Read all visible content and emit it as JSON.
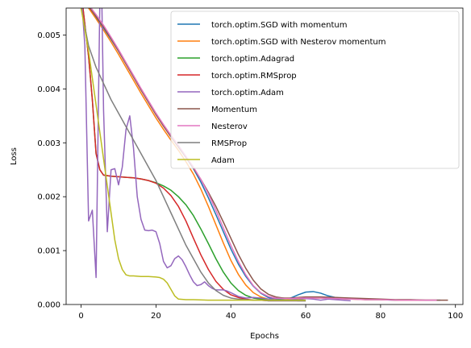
{
  "chart_data": {
    "type": "line",
    "title": "",
    "xlabel": "Epochs",
    "ylabel": "Loss",
    "xlim": [
      -4,
      102
    ],
    "ylim": [
      0,
      0.0055
    ],
    "grid": false,
    "legend_position": "top-right",
    "x_ticks": [
      0,
      20,
      40,
      60,
      80,
      100
    ],
    "x_tick_labels": [
      "0",
      "20",
      "40",
      "60",
      "80",
      "100"
    ],
    "y_ticks": [
      0,
      0.001,
      0.002,
      0.003,
      0.004,
      0.005
    ],
    "y_tick_labels": [
      "0.000",
      "0.001",
      "0.002",
      "0.003",
      "0.004",
      "0.005"
    ],
    "series": [
      {
        "name": "torch.optim.SGD with momentum",
        "color": "#1f77b4",
        "x": [
          0,
          2,
          4,
          6,
          8,
          10,
          12,
          14,
          16,
          18,
          20,
          22,
          24,
          26,
          28,
          30,
          32,
          34,
          36,
          38,
          40,
          42,
          44,
          46,
          48,
          50,
          52,
          54,
          56,
          58,
          60,
          62,
          64,
          66,
          68,
          70,
          72,
          74,
          76,
          78,
          80,
          84,
          88,
          92,
          96
        ],
        "y": [
          0.0058,
          0.0055,
          0.00532,
          0.00513,
          0.00492,
          0.0047,
          0.00447,
          0.00423,
          0.004,
          0.00377,
          0.00354,
          0.00333,
          0.00313,
          0.00294,
          0.00273,
          0.00252,
          0.00227,
          0.00198,
          0.00167,
          0.00135,
          0.00103,
          0.00075,
          0.00052,
          0.00034,
          0.00021,
          0.00013,
          0.0001,
          0.0001,
          0.00012,
          0.00018,
          0.00023,
          0.00024,
          0.00021,
          0.00016,
          0.00013,
          0.00011,
          0.0001,
          0.0001,
          9e-05,
          9e-05,
          9e-05,
          8e-05,
          8e-05,
          8e-05,
          8e-05
        ]
      },
      {
        "name": "torch.optim.SGD with Nesterov momentum",
        "color": "#ff7f0e",
        "x": [
          0,
          2,
          4,
          6,
          8,
          10,
          12,
          14,
          16,
          18,
          20,
          22,
          24,
          26,
          28,
          30,
          32,
          34,
          36,
          38,
          40,
          42,
          44,
          46,
          48,
          50,
          52,
          54,
          56,
          58,
          60,
          64,
          68,
          72,
          76,
          80,
          85,
          90,
          95
        ],
        "y": [
          0.0058,
          0.0055,
          0.0053,
          0.00509,
          0.00487,
          0.00464,
          0.0044,
          0.00416,
          0.00392,
          0.00369,
          0.00346,
          0.00325,
          0.00305,
          0.00286,
          0.00265,
          0.00242,
          0.00214,
          0.00182,
          0.00148,
          0.00114,
          0.00082,
          0.00056,
          0.00036,
          0.00022,
          0.00014,
          0.0001,
          8e-05,
          8e-05,
          9e-05,
          0.00011,
          0.00012,
          0.00012,
          0.00011,
          0.0001,
          9e-05,
          9e-05,
          8e-05,
          8e-05,
          8e-05
        ]
      },
      {
        "name": "torch.optim.Adagrad",
        "color": "#2ca02c",
        "x": [
          0,
          1,
          2,
          3,
          4,
          5,
          6,
          8,
          10,
          12,
          14,
          16,
          18,
          20,
          22,
          24,
          26,
          28,
          30,
          32,
          34,
          36,
          38,
          40,
          42,
          44,
          46,
          48,
          50,
          52,
          55,
          58,
          60
        ],
        "y": [
          0.0058,
          0.0052,
          0.0046,
          0.0038,
          0.0028,
          0.0025,
          0.0024,
          0.00238,
          0.00237,
          0.00236,
          0.00235,
          0.00233,
          0.0023,
          0.00226,
          0.0022,
          0.00212,
          0.002,
          0.00185,
          0.00165,
          0.0014,
          0.00113,
          0.00085,
          0.0006,
          0.0004,
          0.00026,
          0.00017,
          0.00012,
          0.0001,
          9e-05,
          8e-05,
          8e-05,
          7e-05,
          7e-05
        ]
      },
      {
        "name": "torch.optim.RMSprop",
        "color": "#d62728",
        "x": [
          0,
          1,
          2,
          3,
          4,
          5,
          6,
          8,
          10,
          12,
          14,
          16,
          18,
          20,
          22,
          24,
          26,
          28,
          30,
          32,
          34,
          36,
          38,
          40,
          42,
          44,
          46,
          48,
          50,
          52,
          55,
          58,
          60
        ],
        "y": [
          0.0058,
          0.0052,
          0.0046,
          0.0038,
          0.0028,
          0.0025,
          0.0024,
          0.00238,
          0.00237,
          0.00236,
          0.00235,
          0.00233,
          0.0023,
          0.00225,
          0.00216,
          0.00202,
          0.00182,
          0.00155,
          0.00123,
          0.00092,
          0.00065,
          0.00043,
          0.00028,
          0.00018,
          0.00013,
          0.0001,
          8e-05,
          8e-05,
          7e-05,
          7e-05,
          7e-05,
          7e-05,
          7e-05
        ]
      },
      {
        "name": "torch.optim.Adam",
        "color": "#9467bd",
        "x": [
          0,
          1,
          2,
          3,
          4,
          5,
          5.5,
          6,
          7,
          8,
          9,
          10,
          11,
          12,
          13,
          14,
          15,
          16,
          17,
          18,
          19,
          20,
          21,
          22,
          23,
          24,
          25,
          26,
          27,
          28,
          29,
          30,
          31,
          32,
          33,
          34,
          35,
          36,
          37,
          38,
          39,
          40,
          42,
          44,
          46,
          48,
          50,
          52,
          54,
          56,
          58,
          60,
          62,
          64,
          66,
          68,
          70,
          72
        ],
        "y": [
          0.0058,
          0.0048,
          0.00155,
          0.00175,
          0.0005,
          0.0056,
          0.0058,
          0.0036,
          0.00135,
          0.0025,
          0.00252,
          0.00222,
          0.00255,
          0.00325,
          0.0035,
          0.0029,
          0.002,
          0.00158,
          0.00138,
          0.00137,
          0.00138,
          0.00135,
          0.00113,
          0.0008,
          0.00068,
          0.00072,
          0.00085,
          0.0009,
          0.00083,
          0.0007,
          0.00055,
          0.00042,
          0.00035,
          0.00037,
          0.00042,
          0.00035,
          0.0003,
          0.00027,
          0.00027,
          0.00027,
          0.00025,
          0.00022,
          0.00015,
          0.00012,
          0.00013,
          0.00012,
          0.0001,
          0.00011,
          0.00012,
          0.0001,
          9e-05,
          0.00011,
          0.0001,
          8e-05,
          0.0001,
          9e-05,
          8e-05,
          7e-05
        ]
      },
      {
        "name": "Momentum",
        "color": "#8c564b",
        "x": [
          0,
          2,
          4,
          6,
          8,
          10,
          12,
          14,
          16,
          18,
          20,
          22,
          24,
          26,
          28,
          30,
          32,
          34,
          36,
          38,
          40,
          42,
          44,
          46,
          48,
          50,
          52,
          54,
          56,
          58,
          60,
          64,
          68,
          72,
          76,
          80,
          84,
          88,
          92,
          96,
          98
        ],
        "y": [
          0.0058,
          0.00553,
          0.00535,
          0.00515,
          0.00493,
          0.0047,
          0.00446,
          0.00422,
          0.00398,
          0.00375,
          0.00352,
          0.00331,
          0.00311,
          0.00292,
          0.00273,
          0.00253,
          0.00232,
          0.00208,
          0.00182,
          0.00153,
          0.00123,
          0.00093,
          0.00067,
          0.00045,
          0.00029,
          0.00019,
          0.00014,
          0.00012,
          0.00012,
          0.00013,
          0.00014,
          0.00014,
          0.00013,
          0.00012,
          0.00011,
          0.0001,
          9e-05,
          9e-05,
          8e-05,
          8e-05,
          8e-05
        ]
      },
      {
        "name": "Nesterov",
        "color": "#e377c2",
        "x": [
          0,
          2,
          4,
          6,
          8,
          10,
          12,
          14,
          16,
          18,
          20,
          22,
          24,
          26,
          28,
          30,
          32,
          34,
          36,
          38,
          40,
          42,
          44,
          46,
          48,
          50,
          52,
          54,
          56,
          58,
          60,
          64,
          68,
          72,
          76,
          80,
          85,
          90,
          95
        ],
        "y": [
          0.0058,
          0.00556,
          0.00538,
          0.00518,
          0.00496,
          0.00473,
          0.00449,
          0.00425,
          0.00401,
          0.00378,
          0.00355,
          0.00334,
          0.00314,
          0.00295,
          0.00275,
          0.00255,
          0.00232,
          0.00205,
          0.00175,
          0.00142,
          0.0011,
          0.0008,
          0.00055,
          0.00035,
          0.00022,
          0.00015,
          0.00012,
          0.00011,
          0.00011,
          0.00012,
          0.00012,
          0.00012,
          0.00011,
          0.0001,
          9e-05,
          9e-05,
          8e-05,
          8e-05,
          8e-05
        ]
      },
      {
        "name": "RMSProp",
        "color": "#7f7f7f",
        "x": [
          0,
          2,
          4,
          6,
          8,
          10,
          12,
          14,
          16,
          18,
          20,
          22,
          24,
          26,
          28,
          30,
          32,
          34,
          36,
          38,
          40,
          42,
          44,
          46,
          48,
          50,
          52,
          54,
          56,
          58,
          60
        ],
        "y": [
          0.0055,
          0.0048,
          0.0044,
          0.0041,
          0.0038,
          0.00355,
          0.0033,
          0.00305,
          0.0028,
          0.00255,
          0.0023,
          0.002,
          0.0017,
          0.0014,
          0.0011,
          0.00085,
          0.0006,
          0.0004,
          0.00026,
          0.00017,
          0.00012,
          0.0001,
          9e-05,
          8e-05,
          8e-05,
          7e-05,
          7e-05,
          7e-05,
          7e-05,
          7e-05,
          7e-05
        ]
      },
      {
        "name": "Adam",
        "color": "#bcbd22",
        "x": [
          0,
          1,
          2,
          3,
          4,
          5,
          6,
          7,
          8,
          9,
          10,
          11,
          12,
          13,
          14,
          16,
          18,
          20,
          21,
          22,
          23,
          24,
          25,
          26,
          28,
          30,
          34,
          38,
          42,
          46,
          50,
          55,
          60
        ],
        "y": [
          0.0055,
          0.0051,
          0.0047,
          0.0042,
          0.0037,
          0.0032,
          0.0027,
          0.0022,
          0.0017,
          0.0012,
          0.00085,
          0.00065,
          0.00055,
          0.00053,
          0.00053,
          0.00052,
          0.00052,
          0.00051,
          0.0005,
          0.00047,
          0.0004,
          0.00028,
          0.00016,
          0.0001,
          9e-05,
          9e-05,
          8e-05,
          8e-05,
          8e-05,
          8e-05,
          8e-05,
          8e-05,
          8e-05
        ]
      }
    ]
  }
}
